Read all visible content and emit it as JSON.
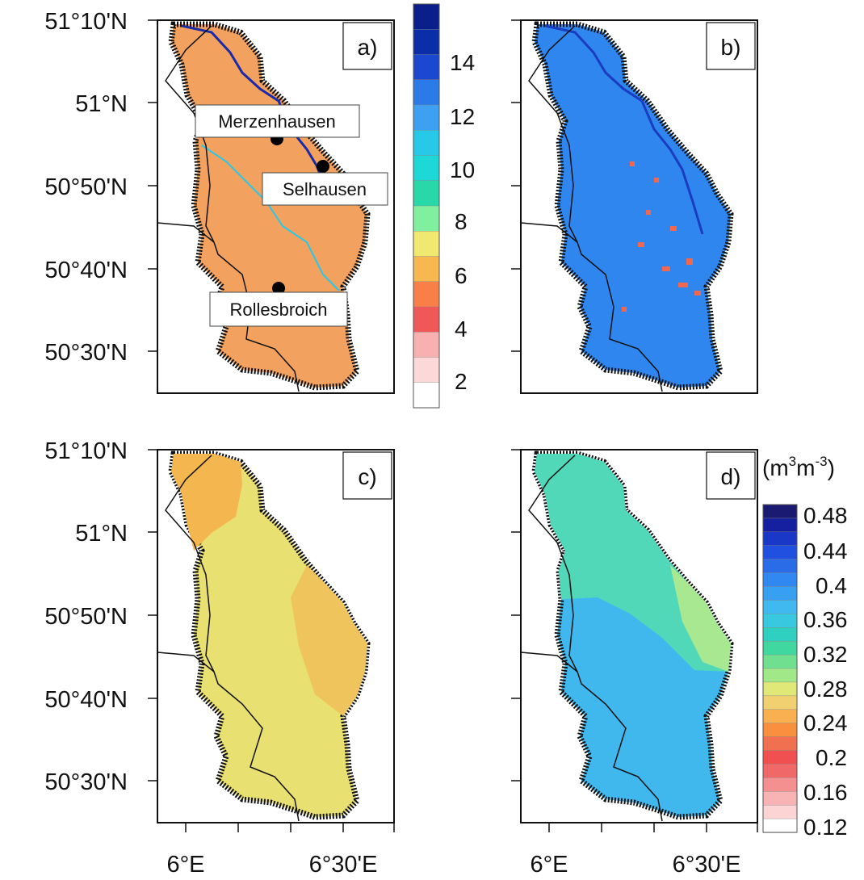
{
  "chart_data": [
    {
      "panel": "a)",
      "type": "heatmap",
      "ylabels": [
        "51°10'N",
        "51°N",
        "50°50'N",
        "50°40'N",
        "50°30'N"
      ],
      "xlabels": [
        "",
        ""
      ],
      "sites": [
        {
          "name": "Merzenhausen",
          "lon": 6.29,
          "lat": 50.93
        },
        {
          "name": "Selhausen",
          "lon": 6.45,
          "lat": 50.87
        },
        {
          "name": "Rollesbroich",
          "lon": 6.3,
          "lat": 50.62
        }
      ],
      "scale_ref": "colorbar_1"
    },
    {
      "panel": "b)",
      "type": "heatmap",
      "ylabels": [
        "",
        "",
        "",
        "",
        ""
      ],
      "xlabels": [
        "",
        ""
      ],
      "scale_ref": "colorbar_1"
    },
    {
      "panel": "c)",
      "type": "heatmap",
      "ylabels": [
        "51°10'N",
        "51°N",
        "50°50'N",
        "50°40'N",
        "50°30'N"
      ],
      "xlabels": [
        "6°E",
        "6°30'E"
      ],
      "scale_ref": "colorbar_2"
    },
    {
      "panel": "d)",
      "type": "heatmap",
      "ylabels": [
        "",
        "",
        "",
        "",
        ""
      ],
      "xlabels": [
        "6°E",
        "6°30'E"
      ],
      "scale_ref": "colorbar_2"
    }
  ],
  "colorbar_1": {
    "labels": [
      "14",
      "12",
      "10",
      "8",
      "6",
      "4",
      "2"
    ],
    "colors": [
      "#0a1f8a",
      "#0a2ea8",
      "#1a48d0",
      "#2a7be8",
      "#3da0f0",
      "#28c8e8",
      "#1ed8d8",
      "#28d8a8",
      "#80f0a0",
      "#f0e870",
      "#f8b850",
      "#f88048",
      "#f05858",
      "#f8b0b0",
      "#fcd8d8",
      "#ffffff"
    ]
  },
  "colorbar_2": {
    "unit_base": "(m",
    "unit_sup1": "3",
    "unit_mid": "m",
    "unit_sup2": "-3",
    "unit_end": ")",
    "labels": [
      "0.48",
      "0.44",
      "0.4",
      "0.36",
      "0.32",
      "0.28",
      "0.24",
      "0.2",
      "0.16",
      "0.12"
    ],
    "colors": [
      "#1a1a70",
      "#1420a0",
      "#1a38c8",
      "#2050e0",
      "#2a6ce8",
      "#3088f0",
      "#38a0f0",
      "#40b8f0",
      "#38c8e0",
      "#30d0c0",
      "#40d8a0",
      "#70e090",
      "#a0e888",
      "#e0e878",
      "#f0d070",
      "#f8b050",
      "#f89040",
      "#f07050",
      "#f05050",
      "#f06868",
      "#f49090",
      "#f8b4b4",
      "#fcd4d4",
      "#ffffff"
    ]
  }
}
